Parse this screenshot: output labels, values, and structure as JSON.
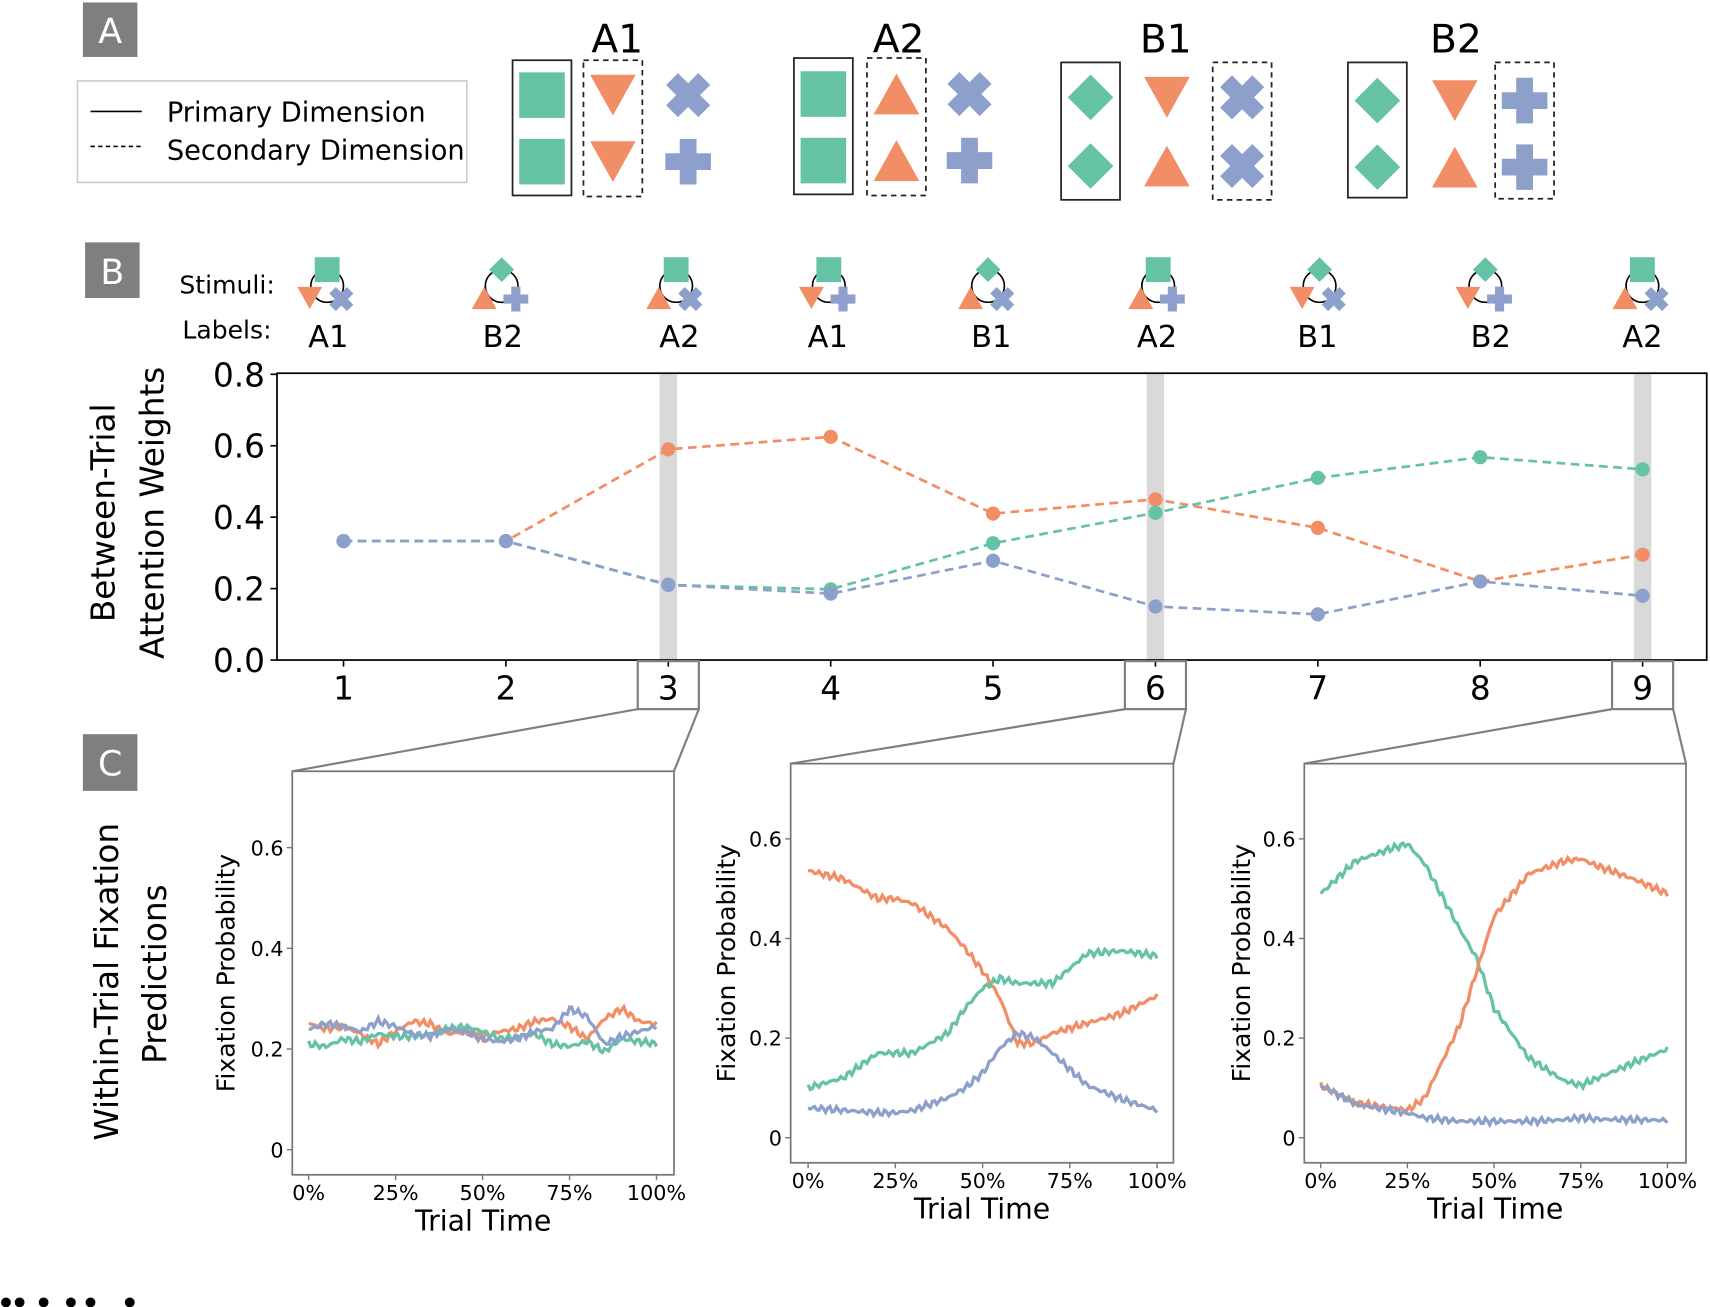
{
  "colors": {
    "green": "#66c2a5",
    "orange": "#f28e65",
    "blue": "#8da0cb",
    "highlight": "#d9d9d9",
    "zoom": "#7f7f7f"
  },
  "panel_a": {
    "letter": "A",
    "legend": {
      "primary": "Primary Dimension",
      "secondary": "Secondary Dimension"
    },
    "categories": [
      {
        "title": "A1",
        "primary": "shape-1",
        "secondary": "shape-2"
      },
      {
        "title": "A2",
        "primary": "shape-1",
        "secondary": "shape-2"
      },
      {
        "title": "B1",
        "primary": "shape-1",
        "secondary": "shape-3"
      },
      {
        "title": "B2",
        "primary": "shape-1",
        "secondary": "shape-3"
      }
    ]
  },
  "panel_b": {
    "letter": "B",
    "stimuli_label": "Stimuli:",
    "labels_label": "Labels:",
    "trials": [
      {
        "label": "A1",
        "top": "square",
        "tri": "down",
        "blue": "x"
      },
      {
        "label": "B2",
        "top": "diamond",
        "tri": "up",
        "blue": "plus"
      },
      {
        "label": "A2",
        "top": "square",
        "tri": "up",
        "blue": "x"
      },
      {
        "label": "A1",
        "top": "square",
        "tri": "down",
        "blue": "plus"
      },
      {
        "label": "B1",
        "top": "diamond",
        "tri": "up",
        "blue": "x"
      },
      {
        "label": "A2",
        "top": "square",
        "tri": "up",
        "blue": "plus"
      },
      {
        "label": "B1",
        "top": "diamond",
        "tri": "down",
        "blue": "x"
      },
      {
        "label": "B2",
        "top": "diamond",
        "tri": "down",
        "blue": "plus"
      },
      {
        "label": "A2",
        "top": "square",
        "tri": "up",
        "blue": "x"
      }
    ]
  },
  "panel_c": {
    "letter": "C",
    "ylabel_line1": "Within-Trial Fixation",
    "ylabel_line2": "Predictions"
  },
  "chart_data": [
    {
      "type": "line",
      "title": "",
      "ylabel_line1": "Between-Trial",
      "ylabel_line2": "Attention Weights",
      "xlabel": "",
      "x": [
        1,
        2,
        3,
        4,
        5,
        6,
        7,
        8,
        9
      ],
      "xticks": [
        "1",
        "2",
        "3",
        "4",
        "5",
        "6",
        "7",
        "8",
        "9"
      ],
      "yticks": [
        "0.0",
        "0.2",
        "0.4",
        "0.6",
        "0.8"
      ],
      "ylim": [
        0,
        0.8
      ],
      "highlighted_trials": [
        3,
        6,
        9
      ],
      "series": [
        {
          "name": "orange",
          "values": [
            0.333,
            0.333,
            0.59,
            0.625,
            0.41,
            0.45,
            0.37,
            0.22,
            0.295
          ]
        },
        {
          "name": "green",
          "values": [
            0.333,
            0.333,
            0.21,
            0.198,
            0.327,
            0.412,
            0.51,
            0.568,
            0.534
          ]
        },
        {
          "name": "blue",
          "values": [
            0.333,
            0.333,
            0.211,
            0.186,
            0.278,
            0.15,
            0.128,
            0.22,
            0.18
          ]
        }
      ]
    },
    {
      "type": "line",
      "trial": 3,
      "xlabel": "Trial Time",
      "ylabel": "Fixation Probability",
      "xticks": [
        "0%",
        "25%",
        "50%",
        "75%",
        "100%"
      ],
      "yticks": [
        "0",
        "0.2",
        "0.4",
        "0.6"
      ],
      "ylim": [
        0,
        0.7
      ],
      "x_pct": [
        0,
        5,
        10,
        15,
        20,
        25,
        30,
        35,
        40,
        45,
        50,
        55,
        60,
        65,
        70,
        75,
        80,
        85,
        90,
        95,
        100
      ],
      "series": [
        {
          "name": "orange",
          "values": [
            0.25,
            0.24,
            0.245,
            0.23,
            0.21,
            0.235,
            0.255,
            0.25,
            0.23,
            0.235,
            0.225,
            0.235,
            0.24,
            0.255,
            0.26,
            0.245,
            0.22,
            0.26,
            0.28,
            0.255,
            0.25
          ]
        },
        {
          "name": "green",
          "values": [
            0.21,
            0.205,
            0.22,
            0.215,
            0.23,
            0.225,
            0.225,
            0.23,
            0.24,
            0.245,
            0.235,
            0.22,
            0.225,
            0.23,
            0.21,
            0.205,
            0.215,
            0.195,
            0.22,
            0.215,
            0.21
          ]
        },
        {
          "name": "blue",
          "values": [
            0.24,
            0.25,
            0.245,
            0.235,
            0.255,
            0.245,
            0.23,
            0.225,
            0.24,
            0.235,
            0.22,
            0.215,
            0.22,
            0.235,
            0.24,
            0.28,
            0.265,
            0.21,
            0.225,
            0.235,
            0.245
          ]
        }
      ]
    },
    {
      "type": "line",
      "trial": 6,
      "xlabel": "Trial Time",
      "ylabel": "Fixation Probability",
      "xticks": [
        "0%",
        "25%",
        "50%",
        "75%",
        "100%"
      ],
      "yticks": [
        "0",
        "0.2",
        "0.4",
        "0.6"
      ],
      "ylim": [
        0,
        0.7
      ],
      "x_pct": [
        0,
        10,
        20,
        25,
        30,
        40,
        45,
        50,
        55,
        60,
        65,
        70,
        80,
        90,
        100
      ],
      "series": [
        {
          "name": "orange",
          "values": [
            0.536,
            0.52,
            0.48,
            0.48,
            0.47,
            0.42,
            0.38,
            0.335,
            0.28,
            0.19,
            0.19,
            0.21,
            0.23,
            0.25,
            0.285
          ]
        },
        {
          "name": "green",
          "values": [
            0.1,
            0.12,
            0.17,
            0.17,
            0.17,
            0.21,
            0.26,
            0.3,
            0.32,
            0.31,
            0.31,
            0.31,
            0.37,
            0.375,
            0.365
          ]
        },
        {
          "name": "blue",
          "values": [
            0.06,
            0.055,
            0.05,
            0.05,
            0.055,
            0.08,
            0.1,
            0.13,
            0.18,
            0.21,
            0.2,
            0.17,
            0.105,
            0.077,
            0.055
          ]
        }
      ]
    },
    {
      "type": "line",
      "trial": 9,
      "xlabel": "Trial Time",
      "ylabel": "Fixation Probability",
      "xticks": [
        "0%",
        "25%",
        "50%",
        "75%",
        "100%"
      ],
      "yticks": [
        "0",
        "0.2",
        "0.4",
        "0.6"
      ],
      "ylim": [
        0,
        0.7
      ],
      "x_pct": [
        0,
        10,
        20,
        25,
        30,
        40,
        45,
        50,
        60,
        70,
        75,
        80,
        90,
        100
      ],
      "series": [
        {
          "name": "green",
          "values": [
            0.49,
            0.555,
            0.58,
            0.59,
            0.55,
            0.42,
            0.36,
            0.26,
            0.16,
            0.115,
            0.105,
            0.12,
            0.15,
            0.178
          ]
        },
        {
          "name": "orange",
          "values": [
            0.105,
            0.07,
            0.06,
            0.055,
            0.08,
            0.225,
            0.335,
            0.445,
            0.53,
            0.555,
            0.56,
            0.545,
            0.52,
            0.49
          ]
        },
        {
          "name": "blue",
          "values": [
            0.105,
            0.068,
            0.055,
            0.05,
            0.04,
            0.033,
            0.033,
            0.033,
            0.033,
            0.036,
            0.04,
            0.037,
            0.036,
            0.035
          ]
        }
      ]
    }
  ]
}
